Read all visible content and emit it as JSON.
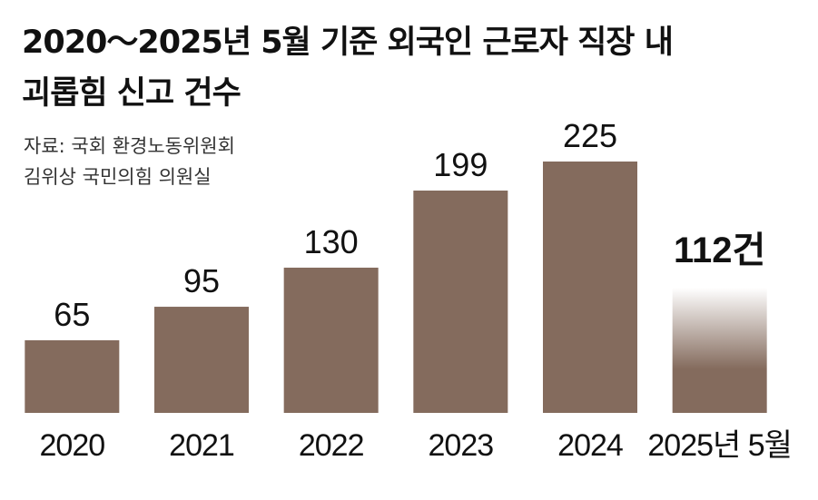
{
  "chart_data": {
    "type": "bar",
    "title": [
      "2020～2025년 5월 기준 외국인 근로자 직장 내",
      "괴롭힘 신고 건수"
    ],
    "source": [
      "자료: 국회 환경노동위원회",
      "김위상 국민의힘 의원실"
    ],
    "categories": [
      "2020",
      "2021",
      "2022",
      "2023",
      "2024",
      "2025년 5월"
    ],
    "values": [
      65,
      95,
      130,
      199,
      225,
      112
    ],
    "value_labels": [
      "65",
      "95",
      "130",
      "199",
      "225",
      "112건"
    ],
    "color": "#846b5d",
    "ylim": [
      0,
      225
    ]
  }
}
